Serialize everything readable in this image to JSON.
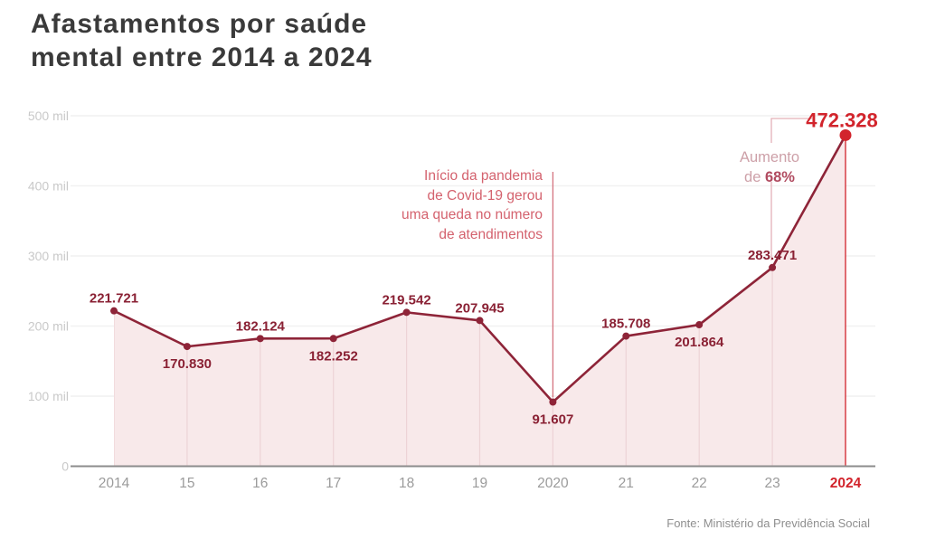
{
  "title": "Afastamentos por saúde\nmental entre 2014 a 2024",
  "source": "Fonte: Ministério da Previdência Social",
  "annotations": {
    "covid": {
      "text": "Início da pandemia\nde Covid-19 gerou\numa queda no número\nde atendimentos",
      "points_to": "2020"
    },
    "increase": {
      "line1": "Aumento",
      "line2_prefix": "de ",
      "line2_value": "68%"
    }
  },
  "colors": {
    "line": "#8E2438",
    "value_label": "#8A2134",
    "highlight": "#D2242C",
    "fill": "#F8E9EA",
    "fill_grid": "#EDD3D6",
    "grid": "#F1F1F1",
    "axis": "#8C8C8C",
    "axis_label_y": "#C9C9C9",
    "axis_label_x": "#9B9B9B",
    "covid_text": "#D4626E",
    "covid_line": "#D4737F",
    "bracket": "#E3B0B8",
    "increase_text": "#CDA0A8",
    "increase_value": "#B14B60",
    "title": "#3A3A3A",
    "source": "#8F8F8F"
  },
  "chart_data": {
    "type": "area",
    "title": "Afastamentos por saúde mental entre 2014 a 2024",
    "x": [
      "2014",
      "15",
      "16",
      "17",
      "18",
      "19",
      "2020",
      "21",
      "22",
      "23",
      "2024"
    ],
    "values": [
      221721,
      170830,
      182124,
      182252,
      219542,
      207945,
      91607,
      185708,
      201864,
      283471,
      472328
    ],
    "point_labels": [
      "221.721",
      "170.830",
      "182.124",
      "182.252",
      "219.542",
      "207.945",
      "91.607",
      "185.708",
      "201.864",
      "283.471",
      "472.328"
    ],
    "label_placement": [
      "above",
      "below",
      "above",
      "below",
      "above",
      "above",
      "below",
      "above",
      "below",
      "above",
      "above"
    ],
    "y_tick_labels": [
      "0",
      "100 mil",
      "200 mil",
      "300 mil",
      "400 mil",
      "500 mil"
    ],
    "ylim": [
      0,
      500000
    ],
    "grid": "horizontal",
    "legend": "none",
    "highlight_index": 10,
    "increase_pct": "68%",
    "source": "Fonte: Ministério da Previdência Social"
  }
}
